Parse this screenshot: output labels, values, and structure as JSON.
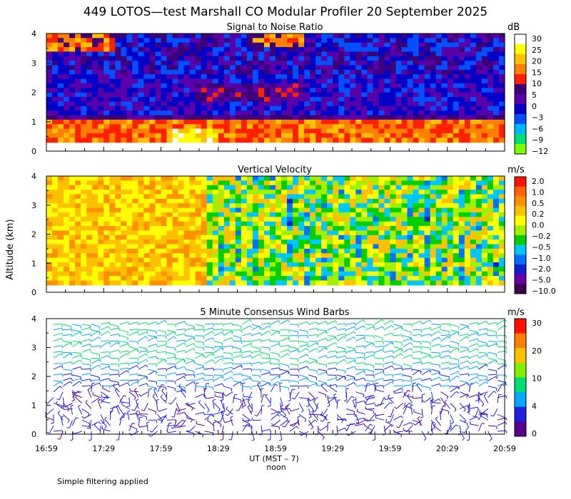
{
  "title": "449 LOTOS—test Marshall CO Modular Profiler 20 September 2025",
  "y_axis_label": "Altitude (km)",
  "x_axis_label": "UT  (MST – 7)",
  "noon_label": "noon",
  "footnote": "Simple filtering applied",
  "time_ticks": [
    "16:59",
    "17:29",
    "17:59",
    "18:29",
    "18:59",
    "19:29",
    "19:59",
    "20:29",
    "20:59"
  ],
  "colors": {
    "snr": [
      "#7cfc00",
      "#00e070",
      "#00b8ff",
      "#0050ff",
      "#0000c8",
      "#5a00a8",
      "#3c0078",
      "#ff2000",
      "#ff8000",
      "#ffc000",
      "#ffff00",
      "#ffffff"
    ],
    "vv": [
      "#3c0050",
      "#6a00a8",
      "#1020d0",
      "#0070ff",
      "#00c8ff",
      "#00d000",
      "#a0f000",
      "#ffff00",
      "#ffc000",
      "#ff9000",
      "#ff6000",
      "#ff1000"
    ],
    "wind": [
      "#5a0090",
      "#2020e0",
      "#00a8ff",
      "#00e070",
      "#80f000",
      "#ffc000",
      "#ff8000",
      "#ff1000"
    ]
  },
  "chart_data": [
    {
      "type": "heatmap",
      "title": "Signal to Noise Ratio",
      "units": "dB",
      "x_range": [
        "16:59",
        "20:59"
      ],
      "ylim": [
        0,
        4
      ],
      "yticks": [
        0,
        1,
        2,
        3,
        4
      ],
      "colorbar_labels": [
        "30",
        "25",
        "20",
        "15",
        "10",
        "5",
        "0",
        "−3",
        "−6",
        "−9",
        "−12"
      ],
      "colorbar_values": [
        30,
        25,
        20,
        15,
        10,
        5,
        0,
        -3,
        -6,
        -9,
        -12
      ]
    },
    {
      "type": "heatmap",
      "title": "Vertical Velocity",
      "units": "m/s",
      "x_range": [
        "16:59",
        "20:59"
      ],
      "ylim": [
        0,
        4
      ],
      "yticks": [
        0,
        1,
        2,
        3,
        4
      ],
      "colorbar_labels": [
        "2.0",
        "1.0",
        "0.5",
        "0.2",
        "0.0",
        "−0.2",
        "−0.5",
        "−1.0",
        "−2.0",
        "−5.0",
        "−10.0"
      ],
      "colorbar_values": [
        2.0,
        1.0,
        0.5,
        0.2,
        0.0,
        -0.2,
        -0.5,
        -1.0,
        -2.0,
        -5.0,
        -10.0
      ]
    },
    {
      "type": "scatter",
      "title": "5 Minute Consensus Wind Barbs",
      "units": "m/s",
      "x_range": [
        "16:59",
        "20:59"
      ],
      "ylim": [
        0,
        4
      ],
      "yticks": [
        0,
        1,
        2,
        3,
        4
      ],
      "colorbar_labels": [
        "30",
        "20",
        "10",
        "4",
        "0"
      ],
      "colorbar_values": [
        30,
        20,
        10,
        4,
        0
      ]
    }
  ]
}
